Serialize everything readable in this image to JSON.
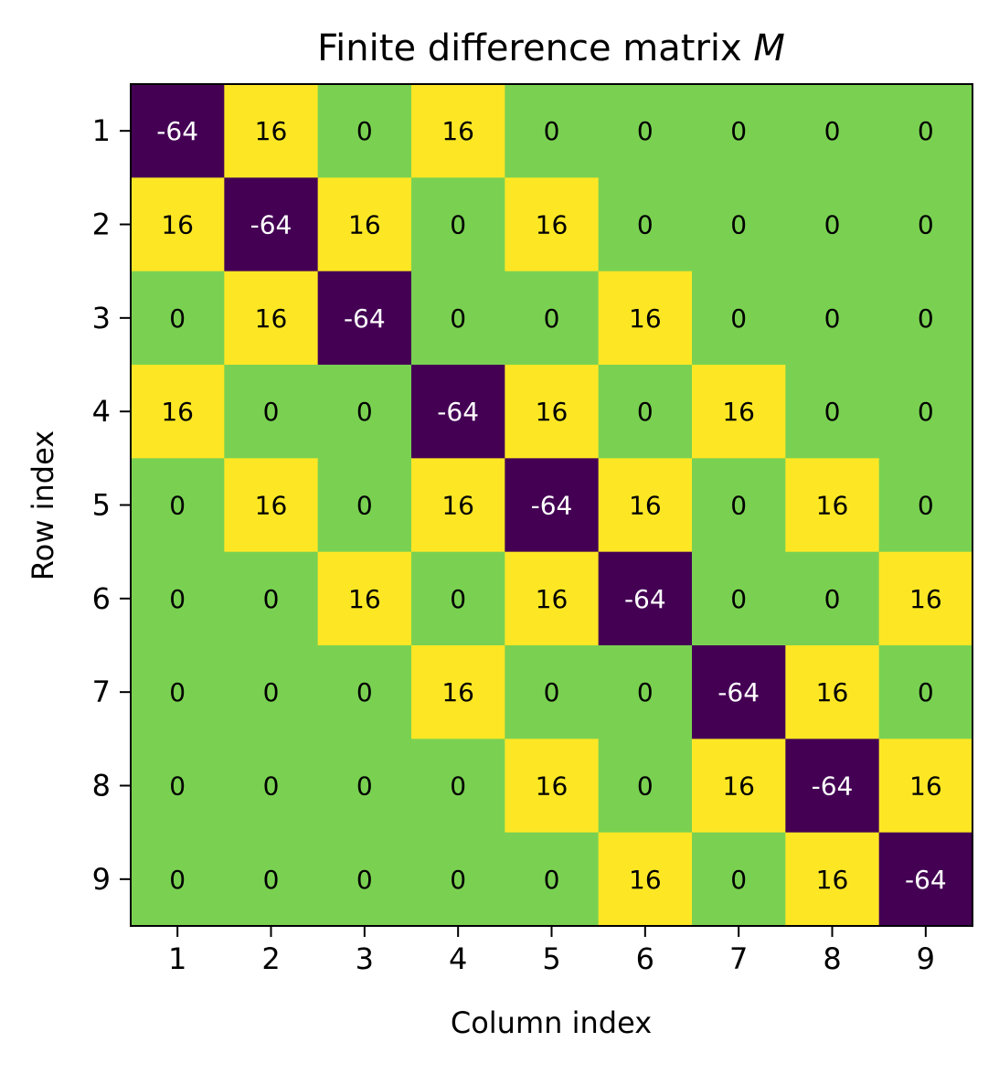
{
  "chart_data": {
    "type": "heatmap",
    "title_prefix": "Finite difference matrix ",
    "title_symbol": "M",
    "xlabel": "Column index",
    "ylabel": "Row index",
    "x_ticks": [
      "1",
      "2",
      "3",
      "4",
      "5",
      "6",
      "7",
      "8",
      "9"
    ],
    "y_ticks": [
      "1",
      "2",
      "3",
      "4",
      "5",
      "6",
      "7",
      "8",
      "9"
    ],
    "matrix": [
      [
        -64,
        16,
        0,
        16,
        0,
        0,
        0,
        0,
        0
      ],
      [
        16,
        -64,
        16,
        0,
        16,
        0,
        0,
        0,
        0
      ],
      [
        0,
        16,
        -64,
        0,
        0,
        16,
        0,
        0,
        0
      ],
      [
        16,
        0,
        0,
        -64,
        16,
        0,
        16,
        0,
        0
      ],
      [
        0,
        16,
        0,
        16,
        -64,
        16,
        0,
        16,
        0
      ],
      [
        0,
        0,
        16,
        0,
        16,
        -64,
        0,
        0,
        16
      ],
      [
        0,
        0,
        0,
        16,
        0,
        0,
        -64,
        16,
        0
      ],
      [
        0,
        0,
        0,
        0,
        16,
        0,
        16,
        -64,
        16
      ],
      [
        0,
        0,
        0,
        0,
        0,
        16,
        0,
        16,
        -64
      ]
    ],
    "colormap": {
      "-64": "#440154",
      "0": "#7ad151",
      "16": "#fde725"
    },
    "label_colors": {
      "dark_cell": "#ffffff",
      "light_cell": "#000000"
    }
  }
}
